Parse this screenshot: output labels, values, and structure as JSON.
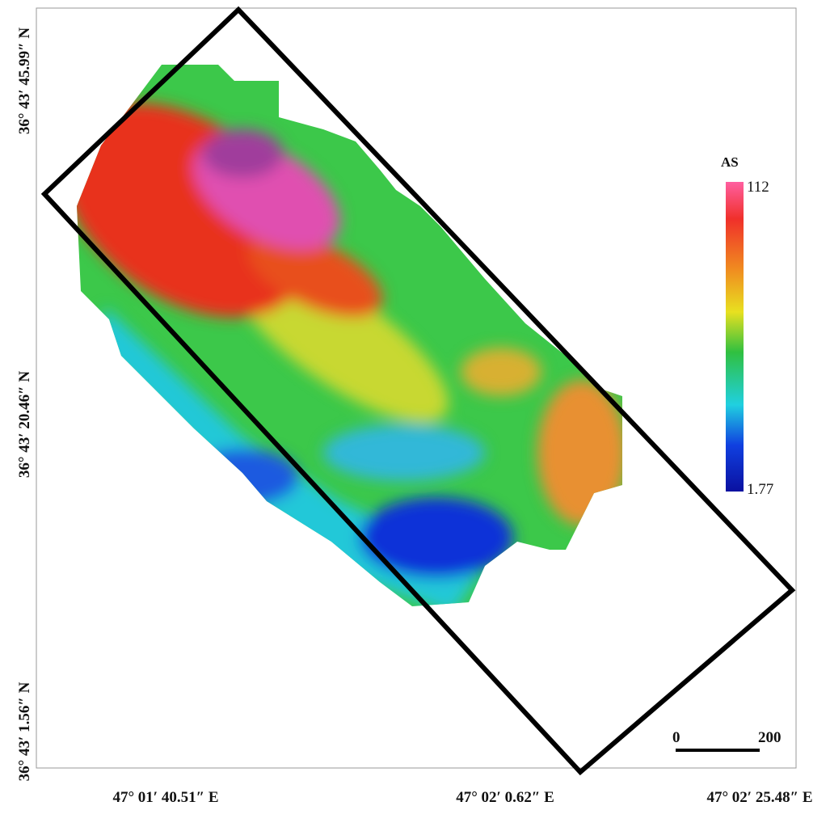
{
  "map": {
    "y_labels": [
      "36° 43′ 45.99″ N",
      "36° 43′ 20.46″ N",
      "36° 43′ 1.56″ N"
    ],
    "x_labels": [
      "47° 01′ 40.51″ E",
      "47° 02′ 0.62″ E",
      "47° 02′ 25.48″ E"
    ],
    "legend": {
      "title": "AS",
      "max": 112,
      "min": 1.77
    },
    "scale_bar": {
      "start": "0",
      "end": "200"
    }
  }
}
